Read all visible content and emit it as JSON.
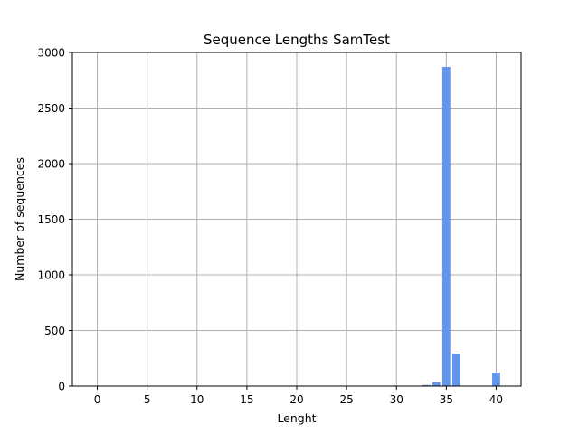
{
  "chart_data": {
    "type": "bar",
    "title": "Sequence Lengths SamTest",
    "xlabel": "Lenght",
    "ylabel": "Number of sequences",
    "xlim": [
      -2.5,
      42.5
    ],
    "ylim": [
      0,
      3000
    ],
    "xticks": [
      0,
      5,
      10,
      15,
      20,
      25,
      30,
      35,
      40
    ],
    "yticks": [
      0,
      500,
      1000,
      1500,
      2000,
      2500,
      3000
    ],
    "grid": true,
    "bar_color": "#6495ed",
    "bar_width": 0.8,
    "x": [
      33,
      34,
      35,
      36,
      40
    ],
    "values": [
      10,
      35,
      2870,
      290,
      120
    ]
  }
}
